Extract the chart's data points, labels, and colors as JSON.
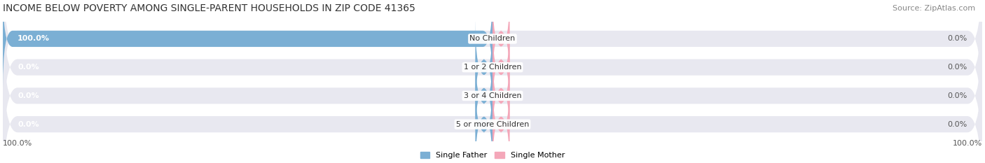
{
  "title": "INCOME BELOW POVERTY AMONG SINGLE-PARENT HOUSEHOLDS IN ZIP CODE 41365",
  "source": "Source: ZipAtlas.com",
  "categories": [
    "No Children",
    "1 or 2 Children",
    "3 or 4 Children",
    "5 or more Children"
  ],
  "father_values": [
    100.0,
    0.0,
    0.0,
    0.0
  ],
  "mother_values": [
    0.0,
    0.0,
    0.0,
    0.0
  ],
  "father_color": "#7bafd4",
  "mother_color": "#f4a7b9",
  "bar_bg_color": "#e8e8f0",
  "background_color": "#ffffff",
  "title_fontsize": 10,
  "source_fontsize": 8,
  "label_fontsize": 8,
  "category_fontsize": 8,
  "legend_fontsize": 8,
  "axis_label_fontsize": 8,
  "xlim": [
    -100,
    100
  ],
  "bottom_left_label": "100.0%",
  "bottom_right_label": "100.0%"
}
